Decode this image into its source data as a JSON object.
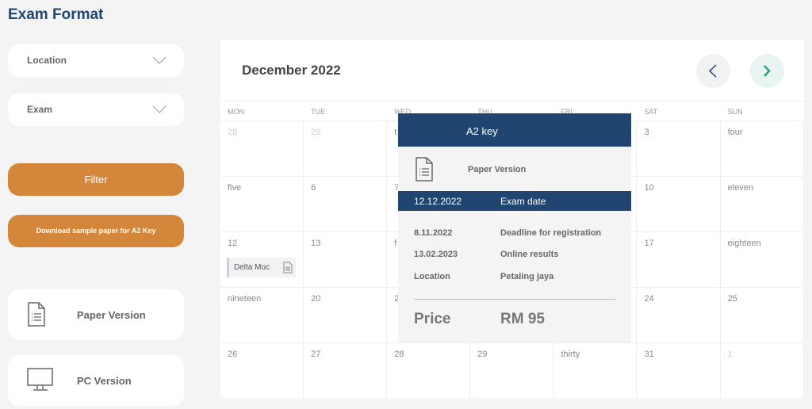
{
  "sidebar": {
    "title": "Exam Format",
    "location_label": "Location",
    "exam_label": "Exam",
    "filter_label": "Filter",
    "download_label": "Download sample paper for A2 Key",
    "paper_version": "Paper Version",
    "pc_version": "PC Version"
  },
  "calendar": {
    "month": "December 2022",
    "weekdays": [
      "MON",
      "TUE",
      "WED",
      "THU",
      "FRI",
      "SAT",
      "SUN"
    ],
    "rows": [
      [
        "28",
        "29",
        "t",
        "",
        "",
        "3",
        "four"
      ],
      [
        "five",
        "6",
        "7",
        "",
        "",
        "10",
        "eleven"
      ],
      [
        "12",
        "13",
        "f",
        "",
        "",
        "17",
        "eighteen"
      ],
      [
        "nineteen",
        "20",
        "2",
        "",
        "",
        "24",
        "25"
      ],
      [
        "26",
        "27",
        "28",
        "29",
        "thirty",
        "31",
        "1"
      ]
    ],
    "event_label": "Delta Moc"
  },
  "popup": {
    "title": "A2 key",
    "version": "Paper Version",
    "exam_date": "12.12.2022",
    "exam_date_label": "Exam date",
    "details": [
      {
        "value": "8.11.2022",
        "label": "Deadline for registration"
      },
      {
        "value": "13.02.2023",
        "label": "Online results"
      },
      {
        "value": "Location",
        "label": "Petaling jaya"
      }
    ],
    "price_label": "Price",
    "price": "RM 95"
  },
  "colors": {
    "brand": "#1f4570",
    "accent": "#d4863a",
    "next": "#3a9a8a"
  }
}
